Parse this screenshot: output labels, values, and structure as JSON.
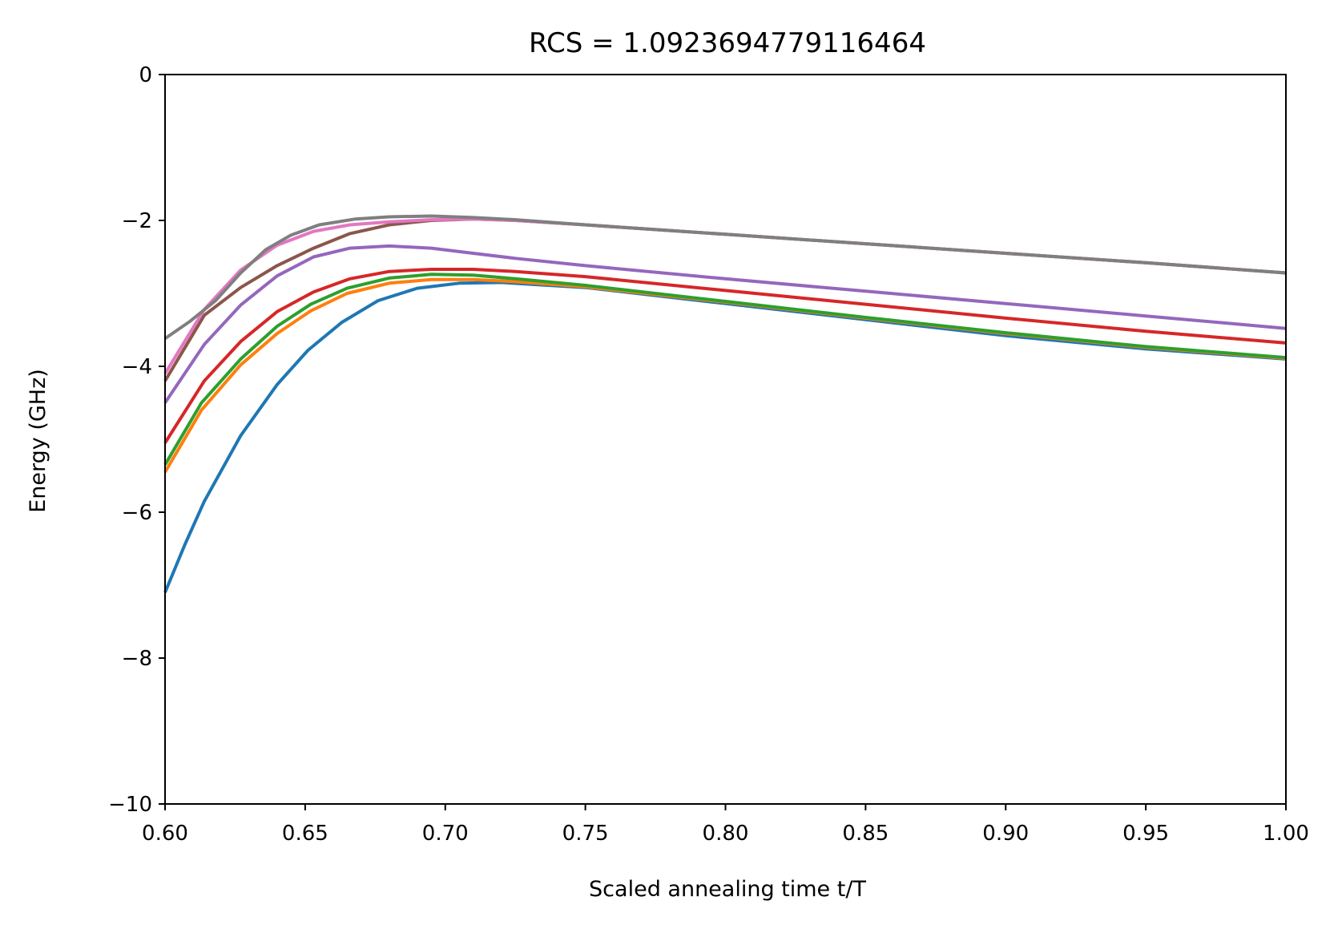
{
  "chart_data": {
    "type": "line",
    "title": "RCS = 1.0923694779116464",
    "xlabel": "Scaled annealing time t/T",
    "ylabel": "Energy (GHz)",
    "xlim": [
      0.6,
      1.0
    ],
    "ylim": [
      -10,
      0
    ],
    "xticks": [
      0.6,
      0.65,
      0.7,
      0.75,
      0.8,
      0.85,
      0.9,
      0.95,
      1.0
    ],
    "xtick_labels": [
      "0.60",
      "0.65",
      "0.70",
      "0.75",
      "0.80",
      "0.85",
      "0.90",
      "0.95",
      "1.00"
    ],
    "yticks": [
      0,
      -2,
      -4,
      -6,
      -8,
      -10
    ],
    "ytick_labels": [
      "0",
      "−2",
      "−4",
      "−6",
      "−8",
      "−10"
    ],
    "grid": false,
    "legend": "none",
    "series": [
      {
        "color": "#1f77b4",
        "x": [
          0.6,
          0.607,
          0.614,
          0.627,
          0.64,
          0.651,
          0.663,
          0.676,
          0.69,
          0.705,
          0.72,
          0.75,
          0.8,
          0.85,
          0.9,
          0.95,
          1.0
        ],
        "y": [
          -7.1,
          -6.45,
          -5.85,
          -4.95,
          -4.25,
          -3.78,
          -3.4,
          -3.1,
          -2.93,
          -2.86,
          -2.85,
          -2.92,
          -3.14,
          -3.36,
          -3.58,
          -3.76,
          -3.9
        ]
      },
      {
        "color": "#ff7f0e",
        "x": [
          0.6,
          0.613,
          0.627,
          0.64,
          0.652,
          0.665,
          0.68,
          0.695,
          0.71,
          0.725,
          0.75,
          0.8,
          0.85,
          0.9,
          0.95,
          1.0
        ],
        "y": [
          -5.45,
          -4.6,
          -3.98,
          -3.55,
          -3.24,
          -3.0,
          -2.86,
          -2.81,
          -2.81,
          -2.84,
          -2.91,
          -3.12,
          -3.34,
          -3.55,
          -3.74,
          -3.89
        ]
      },
      {
        "color": "#2ca02c",
        "x": [
          0.6,
          0.613,
          0.627,
          0.64,
          0.652,
          0.665,
          0.68,
          0.695,
          0.71,
          0.725,
          0.75,
          0.8,
          0.85,
          0.9,
          0.95,
          1.0
        ],
        "y": [
          -5.35,
          -4.5,
          -3.9,
          -3.45,
          -3.15,
          -2.93,
          -2.79,
          -2.74,
          -2.75,
          -2.8,
          -2.89,
          -3.11,
          -3.33,
          -3.54,
          -3.73,
          -3.88
        ]
      },
      {
        "color": "#d62728",
        "x": [
          0.6,
          0.614,
          0.627,
          0.64,
          0.653,
          0.666,
          0.68,
          0.695,
          0.71,
          0.725,
          0.75,
          0.8,
          0.85,
          0.9,
          0.95,
          1.0
        ],
        "y": [
          -5.05,
          -4.2,
          -3.66,
          -3.25,
          -2.98,
          -2.8,
          -2.7,
          -2.67,
          -2.67,
          -2.7,
          -2.77,
          -2.96,
          -3.15,
          -3.34,
          -3.52,
          -3.68
        ]
      },
      {
        "color": "#9467bd",
        "x": [
          0.6,
          0.614,
          0.627,
          0.64,
          0.653,
          0.666,
          0.68,
          0.695,
          0.71,
          0.725,
          0.75,
          0.8,
          0.85,
          0.9,
          0.95,
          1.0
        ],
        "y": [
          -4.5,
          -3.7,
          -3.16,
          -2.76,
          -2.5,
          -2.38,
          -2.35,
          -2.38,
          -2.45,
          -2.52,
          -2.62,
          -2.8,
          -2.97,
          -3.14,
          -3.31,
          -3.48
        ]
      },
      {
        "color": "#8c564b",
        "x": [
          0.6,
          0.614,
          0.627,
          0.64,
          0.653,
          0.666,
          0.68,
          0.695,
          0.71,
          0.725,
          0.75,
          0.8,
          0.85,
          0.9,
          0.95,
          1.0
        ],
        "y": [
          -4.2,
          -3.3,
          -2.92,
          -2.62,
          -2.38,
          -2.18,
          -2.06,
          -2.0,
          -1.98,
          -2.0,
          -2.06,
          -2.19,
          -2.32,
          -2.45,
          -2.58,
          -2.72
        ]
      },
      {
        "color": "#e377c2",
        "x": [
          0.6,
          0.614,
          0.627,
          0.64,
          0.653,
          0.666,
          0.68,
          0.695,
          0.71,
          0.725,
          0.75,
          0.8,
          0.85,
          0.9,
          0.95,
          1.0
        ],
        "y": [
          -4.1,
          -3.22,
          -2.68,
          -2.34,
          -2.15,
          -2.06,
          -2.02,
          -1.99,
          -1.98,
          -2.0,
          -2.06,
          -2.19,
          -2.32,
          -2.45,
          -2.58,
          -2.72
        ]
      },
      {
        "color": "#7f7f7f",
        "x": [
          0.6,
          0.609,
          0.618,
          0.627,
          0.636,
          0.645,
          0.655,
          0.668,
          0.68,
          0.695,
          0.71,
          0.725,
          0.75,
          0.8,
          0.85,
          0.9,
          0.95,
          1.0
        ],
        "y": [
          -3.62,
          -3.38,
          -3.1,
          -2.72,
          -2.4,
          -2.2,
          -2.06,
          -1.98,
          -1.95,
          -1.94,
          -1.96,
          -1.99,
          -2.06,
          -2.19,
          -2.32,
          -2.45,
          -2.58,
          -2.72
        ]
      }
    ]
  }
}
